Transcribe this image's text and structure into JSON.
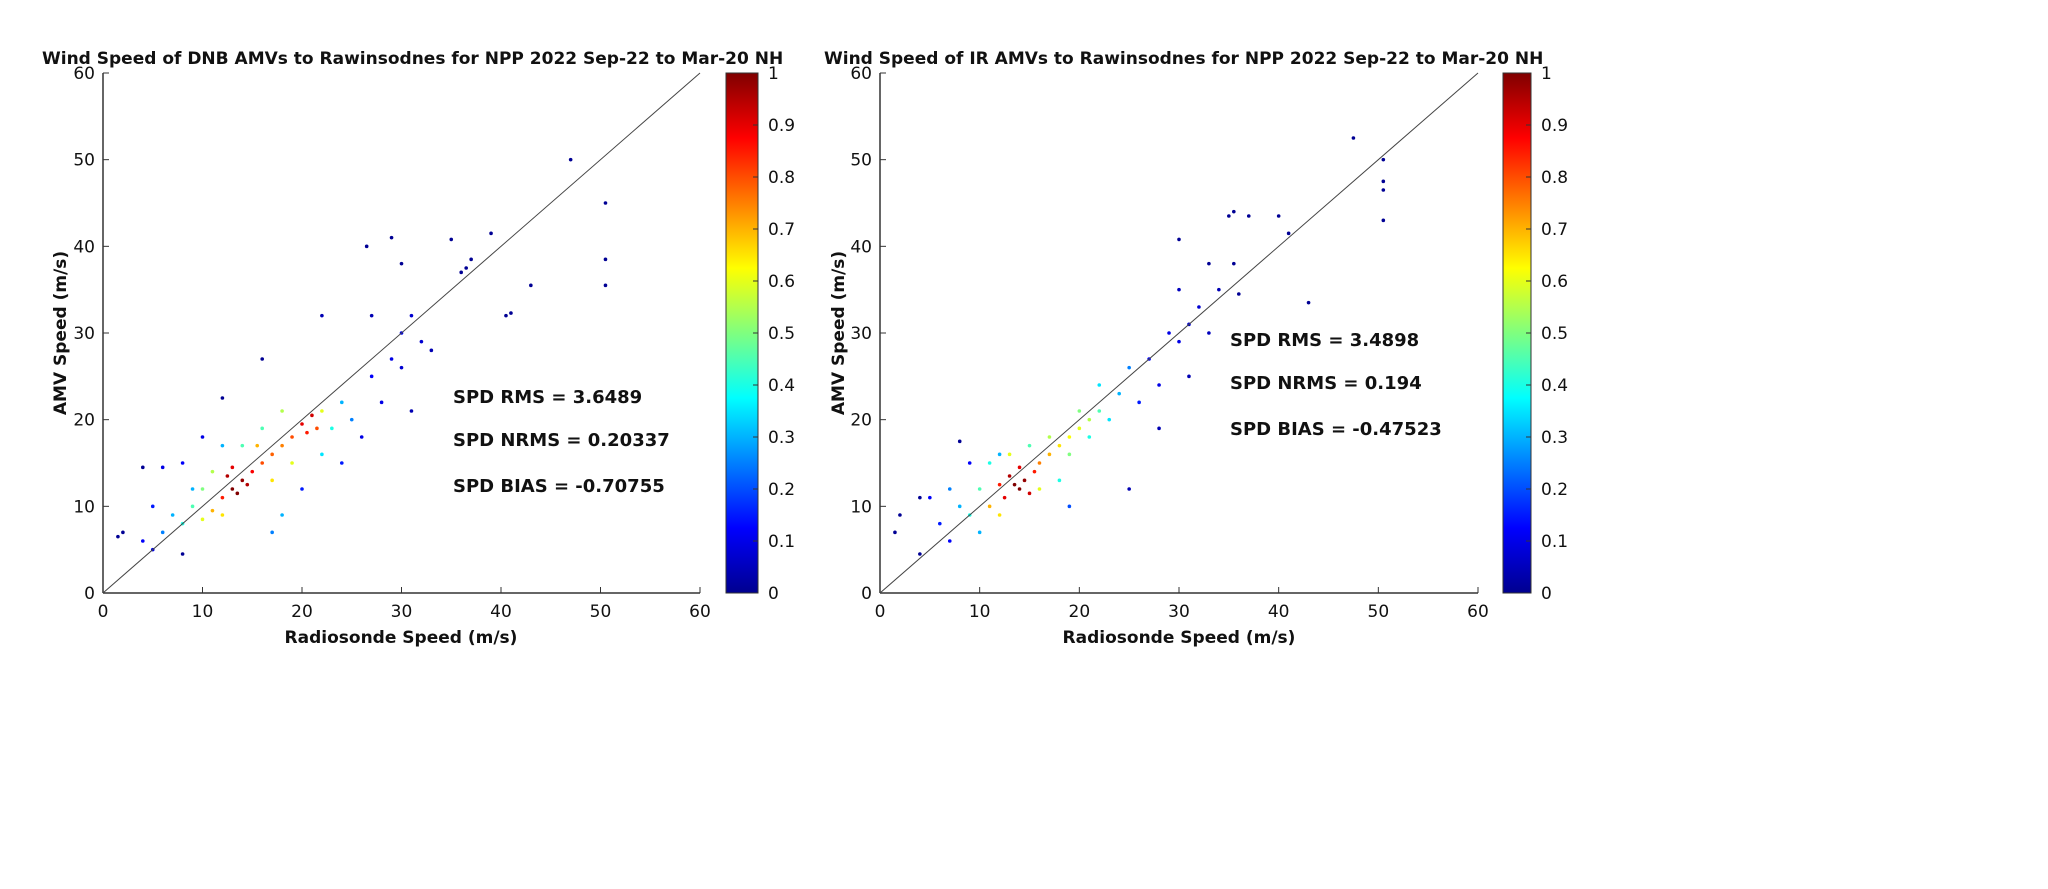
{
  "chart_data": [
    {
      "type": "scatter",
      "title": "Wind Speed of DNB AMVs to Rawinsodnes for NPP 2022 Sep-22 to Mar-20 NH",
      "xlabel": "Radiosonde Speed (m/s)",
      "ylabel": "AMV Speed (m/s)",
      "xlim": [
        0,
        60
      ],
      "ylim": [
        0,
        60
      ],
      "xticks": [
        "0",
        "10",
        "20",
        "30",
        "40",
        "50",
        "60"
      ],
      "yticks": [
        "0",
        "10",
        "20",
        "30",
        "40",
        "50",
        "60"
      ],
      "reference_line": "y = x",
      "colorbar": {
        "range": [
          0,
          1
        ],
        "ticks": [
          "0",
          "0.1",
          "0.2",
          "0.3",
          "0.4",
          "0.5",
          "0.6",
          "0.7",
          "0.8",
          "0.9",
          "1"
        ],
        "colormap": "jet"
      },
      "stats": [
        "SPD RMS = 3.6489",
        "SPD NRMS = 0.20337",
        "SPD BIAS  = -0.70755"
      ],
      "points_note": "representative sample [x, y, density]",
      "points": [
        [
          13,
          12,
          1
        ],
        [
          13.5,
          11.5,
          1
        ],
        [
          14,
          13,
          0.98
        ],
        [
          12.5,
          13.5,
          0.95
        ],
        [
          14.5,
          12.5,
          0.95
        ],
        [
          13,
          14.5,
          0.9
        ],
        [
          15,
          14,
          0.88
        ],
        [
          12,
          11,
          0.85
        ],
        [
          16,
          15,
          0.8
        ],
        [
          17,
          16,
          0.78
        ],
        [
          18,
          17,
          0.75
        ],
        [
          20,
          19.5,
          0.9
        ],
        [
          21,
          20.5,
          0.92
        ],
        [
          20.5,
          18.5,
          0.85
        ],
        [
          19,
          18,
          0.8
        ],
        [
          21.5,
          19,
          0.8
        ],
        [
          11,
          9.5,
          0.7
        ],
        [
          10,
          8.5,
          0.6
        ],
        [
          12,
          9,
          0.65
        ],
        [
          15.5,
          17,
          0.7
        ],
        [
          17,
          13,
          0.65
        ],
        [
          19,
          15,
          0.6
        ],
        [
          22,
          21,
          0.6
        ],
        [
          18,
          21,
          0.55
        ],
        [
          10,
          12,
          0.5
        ],
        [
          11,
          14,
          0.55
        ],
        [
          9,
          10,
          0.45
        ],
        [
          8,
          8,
          0.4
        ],
        [
          14,
          17,
          0.45
        ],
        [
          16,
          19,
          0.45
        ],
        [
          23,
          19,
          0.4
        ],
        [
          22,
          16,
          0.35
        ],
        [
          7,
          9,
          0.3
        ],
        [
          9,
          12,
          0.3
        ],
        [
          6,
          7,
          0.25
        ],
        [
          12,
          17,
          0.3
        ],
        [
          18,
          9,
          0.3
        ],
        [
          17,
          7,
          0.25
        ],
        [
          24,
          22,
          0.3
        ],
        [
          25,
          20,
          0.25
        ],
        [
          5,
          10,
          0.15
        ],
        [
          4,
          6,
          0.12
        ],
        [
          6,
          14.5,
          0.1
        ],
        [
          5,
          5,
          0.1
        ],
        [
          8,
          15,
          0.12
        ],
        [
          10,
          18,
          0.1
        ],
        [
          20,
          12,
          0.15
        ],
        [
          24,
          15,
          0.15
        ],
        [
          26,
          18,
          0.1
        ],
        [
          27,
          25,
          0.12
        ],
        [
          28,
          22,
          0.1
        ],
        [
          29,
          27,
          0.1
        ],
        [
          30,
          30,
          0.1
        ],
        [
          30,
          26,
          0.08
        ],
        [
          31,
          32,
          0.08
        ],
        [
          32,
          29,
          0.08
        ],
        [
          33,
          28,
          0.05
        ],
        [
          31,
          21,
          0.05
        ],
        [
          27,
          32,
          0.05
        ],
        [
          22,
          32,
          0.05
        ],
        [
          47,
          50,
          0.02
        ],
        [
          50.5,
          45,
          0.02
        ],
        [
          50.5,
          38.5,
          0.02
        ],
        [
          50.5,
          35.5,
          0.02
        ],
        [
          39,
          41.5,
          0.02
        ],
        [
          35,
          40.8,
          0.02
        ],
        [
          29,
          41,
          0.02
        ],
        [
          26.5,
          40,
          0.02
        ],
        [
          30,
          38,
          0.02
        ],
        [
          43,
          35.5,
          0.02
        ],
        [
          40.5,
          32,
          0.02
        ],
        [
          41,
          32.3,
          0.02
        ],
        [
          36,
          37,
          0.02
        ],
        [
          36.5,
          37.5,
          0.02
        ],
        [
          37,
          38.5,
          0.02
        ],
        [
          16,
          27,
          0.02
        ],
        [
          12,
          22.5,
          0.02
        ],
        [
          4,
          14.5,
          0.02
        ],
        [
          2,
          7,
          0.02
        ],
        [
          1.5,
          6.5,
          0.02
        ],
        [
          8,
          4.5,
          0.02
        ]
      ]
    },
    {
      "type": "scatter",
      "title": "Wind Speed of IR AMVs to Rawinsodnes for NPP 2022 Sep-22 to Mar-20 NH",
      "xlabel": "Radiosonde Speed (m/s)",
      "ylabel": "AMV Speed (m/s)",
      "xlim": [
        0,
        60
      ],
      "ylim": [
        0,
        60
      ],
      "xticks": [
        "0",
        "10",
        "20",
        "30",
        "40",
        "50",
        "60"
      ],
      "yticks": [
        "0",
        "10",
        "20",
        "30",
        "40",
        "50",
        "60"
      ],
      "reference_line": "y = x",
      "colorbar": {
        "range": [
          0,
          1
        ],
        "ticks": [
          "0",
          "0.1",
          "0.2",
          "0.3",
          "0.4",
          "0.5",
          "0.6",
          "0.7",
          "0.8",
          "0.9",
          "1"
        ],
        "colormap": "jet"
      },
      "stats": [
        "SPD RMS = 3.4898",
        "SPD NRMS = 0.194",
        "SPD BIAS  = -0.47523"
      ],
      "points_note": "representative sample [x, y, density]",
      "points": [
        [
          14,
          12,
          1
        ],
        [
          13.5,
          12.5,
          1
        ],
        [
          14.5,
          13,
          0.98
        ],
        [
          13,
          13.5,
          0.95
        ],
        [
          15,
          11.5,
          0.92
        ],
        [
          12.5,
          11,
          0.9
        ],
        [
          14,
          14.5,
          0.9
        ],
        [
          15.5,
          14,
          0.85
        ],
        [
          12,
          12.5,
          0.85
        ],
        [
          16,
          15,
          0.75
        ],
        [
          17,
          16,
          0.7
        ],
        [
          18,
          17,
          0.65
        ],
        [
          19,
          18,
          0.62
        ],
        [
          20,
          19,
          0.6
        ],
        [
          21,
          20,
          0.55
        ],
        [
          11,
          10,
          0.7
        ],
        [
          12,
          9,
          0.65
        ],
        [
          13,
          16,
          0.6
        ],
        [
          16,
          12,
          0.6
        ],
        [
          17,
          18,
          0.55
        ],
        [
          19,
          16,
          0.5
        ],
        [
          20,
          21,
          0.5
        ],
        [
          22,
          21,
          0.45
        ],
        [
          10,
          12,
          0.45
        ],
        [
          9,
          9,
          0.4
        ],
        [
          11,
          15,
          0.4
        ],
        [
          15,
          17,
          0.45
        ],
        [
          18,
          13,
          0.4
        ],
        [
          21,
          18,
          0.4
        ],
        [
          22,
          24,
          0.35
        ],
        [
          23,
          20,
          0.35
        ],
        [
          8,
          10,
          0.3
        ],
        [
          10,
          7,
          0.3
        ],
        [
          7,
          12,
          0.25
        ],
        [
          12,
          16,
          0.3
        ],
        [
          24,
          23,
          0.3
        ],
        [
          25,
          26,
          0.25
        ],
        [
          19,
          10,
          0.2
        ],
        [
          6,
          8,
          0.15
        ],
        [
          5,
          11,
          0.12
        ],
        [
          7,
          6,
          0.12
        ],
        [
          9,
          15,
          0.12
        ],
        [
          26,
          22,
          0.15
        ],
        [
          27,
          27,
          0.12
        ],
        [
          28,
          24,
          0.1
        ],
        [
          29,
          30,
          0.1
        ],
        [
          30,
          29,
          0.1
        ],
        [
          31,
          31,
          0.08
        ],
        [
          32,
          33,
          0.08
        ],
        [
          33,
          30,
          0.06
        ],
        [
          30,
          35,
          0.06
        ],
        [
          28,
          19,
          0.05
        ],
        [
          31,
          25,
          0.05
        ],
        [
          34,
          35,
          0.05
        ],
        [
          25,
          12,
          0.05
        ],
        [
          47.5,
          52.5,
          0.02
        ],
        [
          50.5,
          50,
          0.02
        ],
        [
          50.5,
          47.5,
          0.02
        ],
        [
          50.5,
          46.5,
          0.02
        ],
        [
          50.5,
          43,
          0.02
        ],
        [
          43,
          33.5,
          0.02
        ],
        [
          41,
          41.5,
          0.02
        ],
        [
          40,
          43.5,
          0.02
        ],
        [
          37,
          43.5,
          0.02
        ],
        [
          35.5,
          44,
          0.02
        ],
        [
          35,
          43.5,
          0.02
        ],
        [
          35.5,
          38,
          0.02
        ],
        [
          36,
          34.5,
          0.02
        ],
        [
          30,
          40.8,
          0.02
        ],
        [
          33,
          38,
          0.02
        ],
        [
          1.5,
          7,
          0.02
        ],
        [
          2,
          9,
          0.02
        ],
        [
          4,
          4.5,
          0.02
        ],
        [
          4,
          11,
          0.02
        ],
        [
          8,
          17.5,
          0.02
        ]
      ]
    }
  ]
}
